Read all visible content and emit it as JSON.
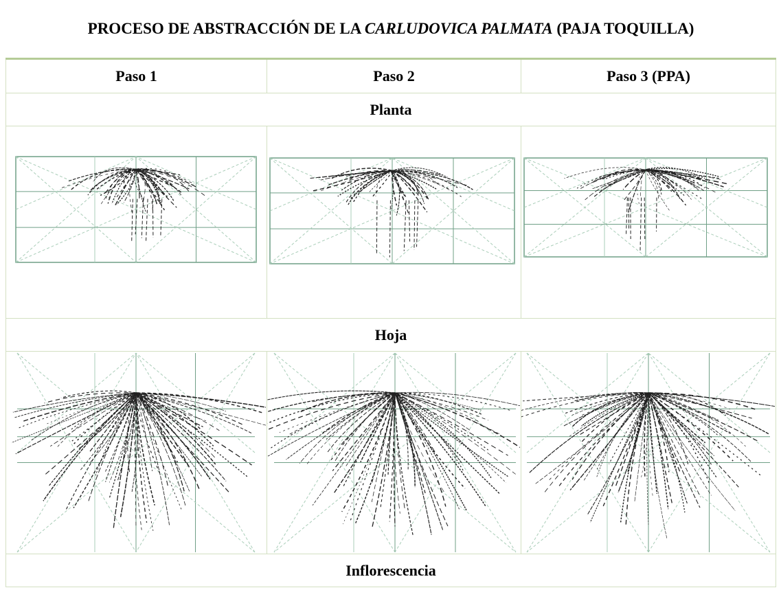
{
  "title": {
    "before": "PROCESO DE ABSTRACCIÓN DE LA ",
    "italic": "CARLUDOVICA PALMATA",
    "after": " (PAJA TOQUILLA)"
  },
  "table": {
    "headers": [
      "Paso 1",
      "Paso 2",
      "Paso 3 (PPA)"
    ],
    "sections": [
      "Planta",
      "Hoja",
      "Inflorescencia"
    ]
  }
}
